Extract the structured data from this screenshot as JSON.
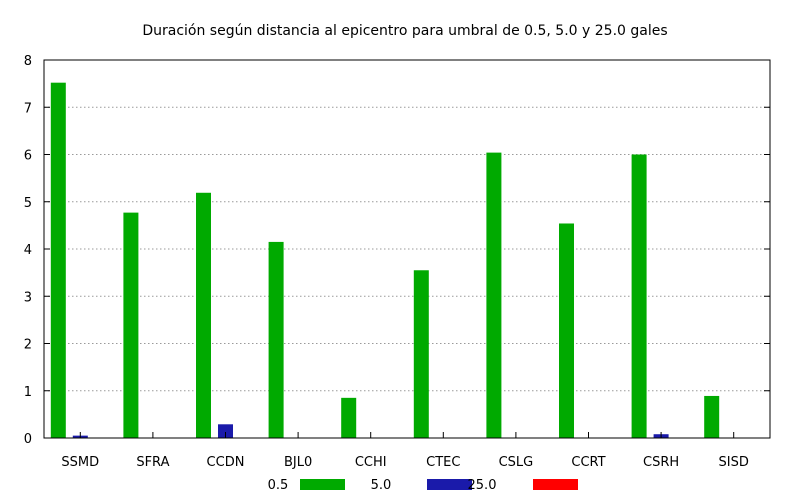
{
  "chart_data": {
    "type": "bar",
    "title": "Duración según distancia al epicentro para umbral de 0.5, 5.0 y 25.0 gales",
    "xlabel": "",
    "ylabel": "",
    "ylim": [
      0,
      8
    ],
    "yticks": [
      "0",
      "1",
      "2",
      "3",
      "4",
      "5",
      "6",
      "7",
      "8"
    ],
    "grid": true,
    "legend_position": "bottom",
    "categories": [
      "SSMD",
      "SFRA",
      "CCDN",
      "BJL0",
      "CCHI",
      "CTEC",
      "CSLG",
      "CCRT",
      "CSRH",
      "SISD"
    ],
    "series": [
      {
        "name": "0.5",
        "color": "#00aa00",
        "values": [
          7.52,
          4.77,
          5.19,
          4.15,
          0.85,
          3.55,
          6.04,
          4.54,
          6.0,
          0.89
        ]
      },
      {
        "name": "5.0",
        "color": "#1a1aaa",
        "values": [
          0.05,
          0,
          0.29,
          0,
          0,
          0,
          0,
          0,
          0.08,
          0
        ]
      },
      {
        "name": "25.0",
        "color": "#ff0000",
        "values": [
          0,
          0,
          0,
          0,
          0,
          0,
          0,
          0,
          0,
          0
        ]
      }
    ]
  }
}
